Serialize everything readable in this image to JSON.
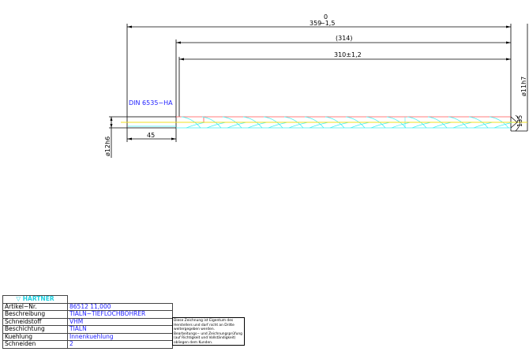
{
  "drawing": {
    "dim_total": {
      "nominal": "359",
      "upper": "0",
      "lower": "−1,5"
    },
    "dim_ref": "(314)",
    "dim_flute": "310±1,2",
    "dim_shank_length": "45",
    "dim_shank_dia": "ø12h6",
    "dim_tip_dia": "ø11h7",
    "dim_point_angle": "135",
    "shank_standard": "DIN 6535−HA"
  },
  "title_block": {
    "brand": "HARTNER",
    "rows": [
      {
        "label": "Artikel−Nr.",
        "value": "86512 11,000"
      },
      {
        "label": "Beschreibung",
        "value": "TIALN−TIEFLOCHBOHRER"
      },
      {
        "label": "Schneidstoff",
        "value": "VHM"
      },
      {
        "label": "Beschichtung",
        "value": "TIALN"
      },
      {
        "label": "Kuehlung",
        "value": "Innenkuehlung"
      },
      {
        "label": "Schneiden",
        "value": "2"
      }
    ],
    "note_lines": [
      "Diese Zeichnung ist Eigentum des",
      "Herstellers und darf nicht an Dritte",
      "weitergegeben werden.",
      "Bearbeitungs− und Zeichnungsprüfung",
      "(auf Richtigkeit und Vollständigkeit)",
      "obliegen dem Kunden."
    ]
  },
  "colors": {
    "centerline": "#f0e020",
    "flute": "#40f0f0",
    "edge": "#ff5050",
    "text": "#2323ff"
  }
}
